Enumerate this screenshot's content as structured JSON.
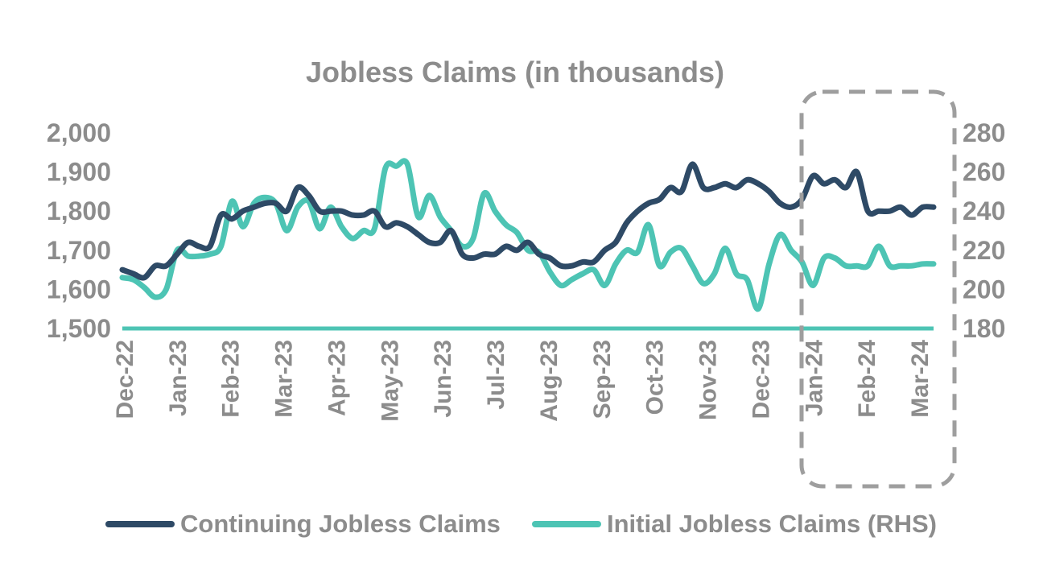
{
  "chart_data": {
    "type": "line",
    "title": "Jobless Claims (in thousands)",
    "x_tick_labels": [
      "Dec-22",
      "Jan-23",
      "Feb-23",
      "Mar-23",
      "Apr-23",
      "May-23",
      "Jun-23",
      "Jul-23",
      "Aug-23",
      "Sep-23",
      "Oct-23",
      "Nov-23",
      "Dec-23",
      "Jan-24",
      "Feb-24",
      "Mar-24"
    ],
    "y_left": {
      "min": 1500,
      "max": 2000,
      "ticks": [
        "1,500",
        "1,600",
        "1,700",
        "1,800",
        "1,900",
        "2,000"
      ]
    },
    "y_right": {
      "min": 180,
      "max": 280,
      "ticks": [
        "180",
        "200",
        "220",
        "240",
        "260",
        "280"
      ]
    },
    "legend_position": "bottom",
    "highlight": "dashed box around Jan-24 to Mar-24",
    "colors": {
      "continuing": "#2e4a66",
      "initial": "#4dc4b4",
      "axis": "#4dc4b4",
      "text": "#8c8c8c",
      "box": "#9e9e9e"
    },
    "series": [
      {
        "name": "Continuing Jobless Claims",
        "axis": "left",
        "values": [
          1650,
          1640,
          1630,
          1660,
          1660,
          1690,
          1720,
          1710,
          1710,
          1790,
          1780,
          1800,
          1810,
          1820,
          1820,
          1800,
          1860,
          1840,
          1800,
          1800,
          1800,
          1790,
          1790,
          1800,
          1760,
          1770,
          1760,
          1740,
          1720,
          1720,
          1750,
          1690,
          1680,
          1690,
          1690,
          1710,
          1700,
          1720,
          1690,
          1680,
          1660,
          1660,
          1670,
          1670,
          1700,
          1720,
          1770,
          1800,
          1820,
          1830,
          1860,
          1850,
          1920,
          1860,
          1860,
          1870,
          1860,
          1880,
          1870,
          1850,
          1820,
          1810,
          1830,
          1890,
          1870,
          1880,
          1860,
          1900,
          1800,
          1800,
          1800,
          1810,
          1790,
          1810,
          1810
        ]
      },
      {
        "name": "Initial Jobless Claims (RHS)",
        "axis": "right",
        "values": [
          206,
          205,
          201,
          196,
          200,
          220,
          217,
          217,
          218,
          222,
          245,
          232,
          244,
          247,
          244,
          230,
          242,
          245,
          231,
          242,
          232,
          226,
          230,
          231,
          262,
          263,
          264,
          237,
          248,
          237,
          230,
          222,
          226,
          249,
          240,
          233,
          229,
          220,
          219,
          209,
          202,
          205,
          208,
          210,
          202,
          213,
          220,
          219,
          233,
          212,
          219,
          221,
          212,
          203,
          208,
          221,
          208,
          205,
          190,
          213,
          228,
          220,
          214,
          202,
          216,
          216,
          212,
          212,
          212,
          222,
          212,
          212,
          212,
          213,
          213
        ]
      }
    ]
  }
}
